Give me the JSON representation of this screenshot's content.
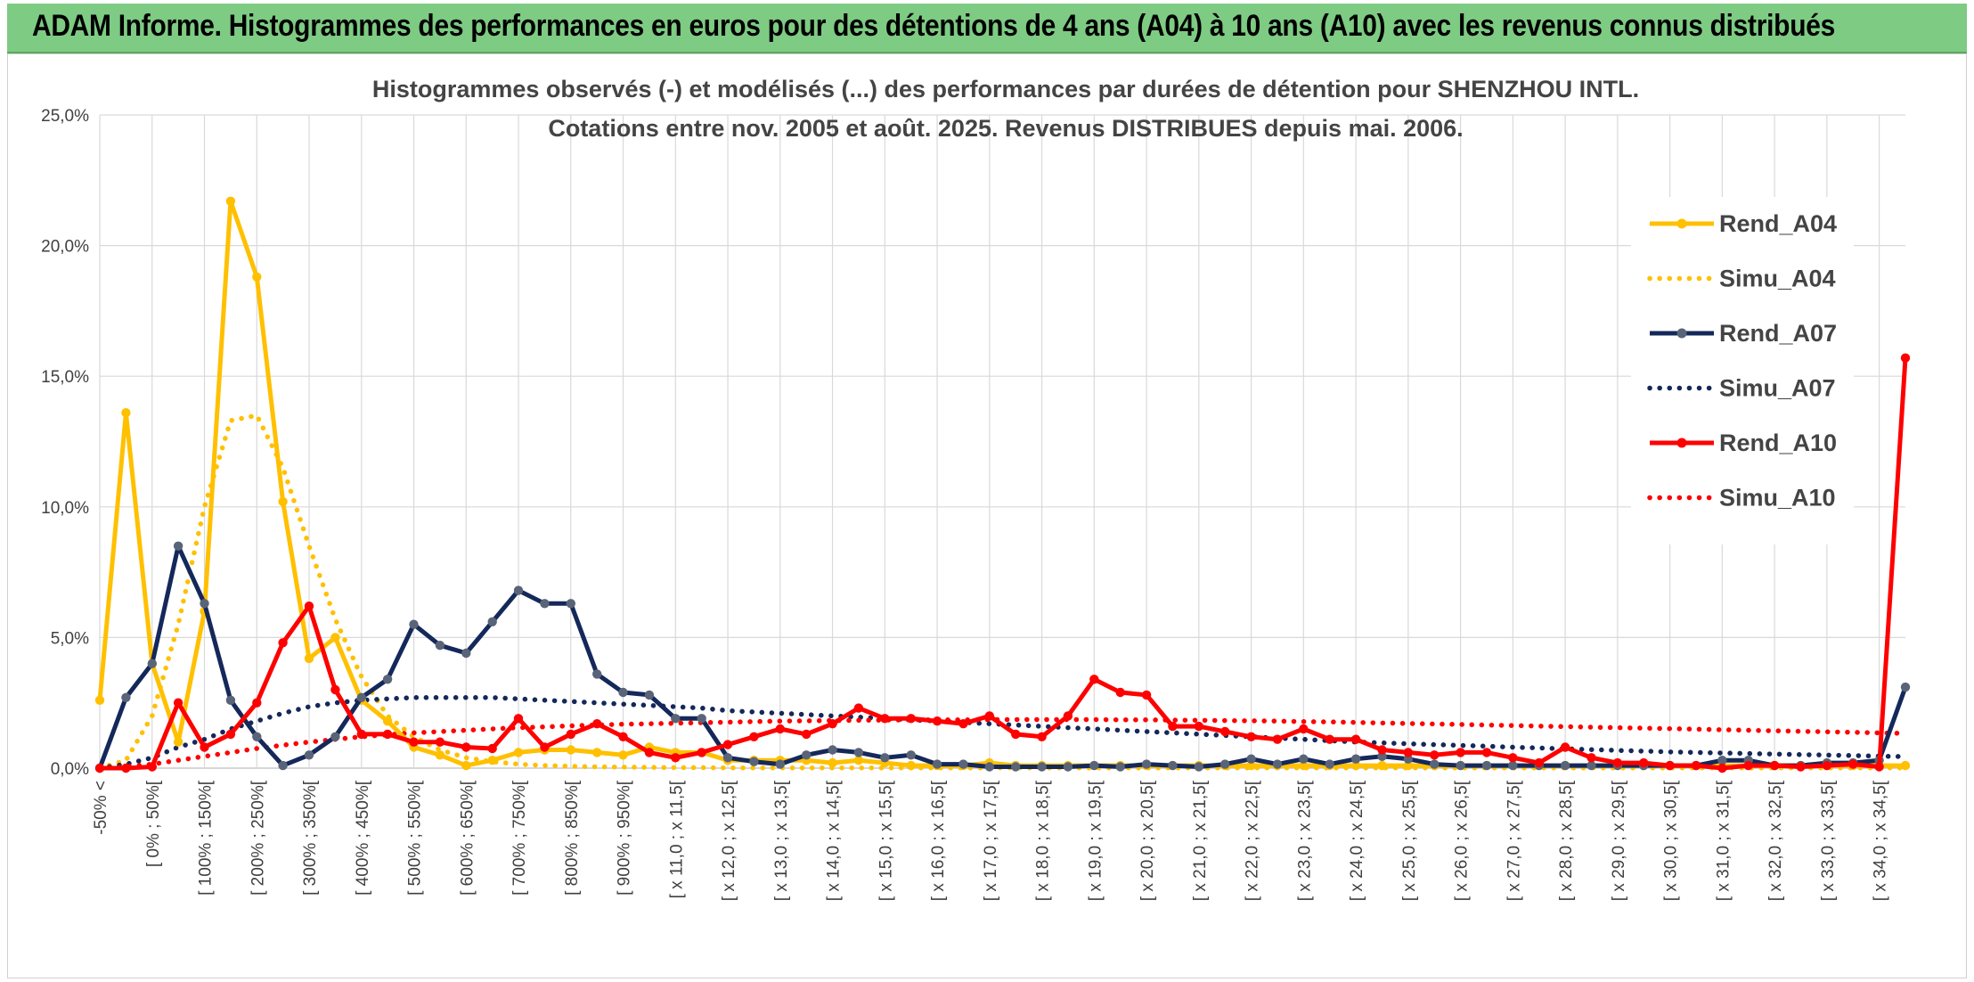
{
  "header": {
    "title": "ADAM Informe. Histogrammes des performances en euros pour des détentions de 4 ans (A04) à 10 ans (A10) avec les revenus connus distribués"
  },
  "chart_data": {
    "type": "line",
    "title": "Histogrammes observés (-) et modélisés (...) des performances par durées de détention pour SHENZHOU INTL.",
    "subtitle": "Cotations entre nov. 2005 et août. 2025. Revenus DISTRIBUES depuis mai. 2006.",
    "ylim": [
      0,
      25
    ],
    "y_ticks": [
      "0,0%",
      "5,0%",
      "10,0%",
      "15,0%",
      "20,0%",
      "25,0%"
    ],
    "grid": true,
    "legend_position": "right",
    "x_tick_labels": [
      "-50% <",
      "[ 0% ; 50%[",
      "[ 100% ; 150%[",
      "[ 200% ; 250%[",
      "[ 300% ; 350%[",
      "[ 400% ; 450%[",
      "[ 500% ; 550%[",
      "[ 600% ; 650%[",
      "[ 700% ; 750%[",
      "[ 800% ; 850%[",
      "[ 900% ; 950%[",
      "[ x 11,0 ; x 11,5[",
      "[ x 12,0 ; x 12,5[",
      "[ x 13,0 ; x 13,5[",
      "[ x 14,0 ; x 14,5[",
      "[ x 15,0 ; x 15,5[",
      "[ x 16,0 ; x 16,5[",
      "[ x 17,0 ; x 17,5[",
      "[ x 18,0 ; x 18,5[",
      "[ x 19,0 ; x 19,5[",
      "[ x 20,0 ; x 20,5[",
      "[ x 21,0 ; x 21,5[",
      "[ x 22,0 ; x 22,5[",
      "[ x 23,0 ; x 23,5[",
      "[ x 24,0 ; x 24,5[",
      "[ x 25,0 ; x 25,5[",
      "[ x 26,0 ; x 26,5[",
      "[ x 27,0 ; x 27,5[",
      "[ x 28,0 ; x 28,5[",
      "[ x 29,0 ; x 29,5[",
      "[ x 30,0 ; x 30,5[",
      "[ x 31,0 ; x 31,5[",
      "[ x 32,0 ; x 32,5[",
      "[ x 33,0 ; x 33,5[",
      "[ x 34,0 ; x 34,5["
    ],
    "n_points": 70,
    "series": [
      {
        "name": "Rend_A04",
        "style": "solid",
        "color": "#ffc000",
        "markers": true,
        "values": [
          2.6,
          13.6,
          4.0,
          1.0,
          6.0,
          21.7,
          18.8,
          10.2,
          4.2,
          5.0,
          2.6,
          1.8,
          0.8,
          0.5,
          0.1,
          0.3,
          0.6,
          0.7,
          0.7,
          0.6,
          0.5,
          0.8,
          0.6,
          0.6,
          0.3,
          0.3,
          0.3,
          0.3,
          0.2,
          0.3,
          0.2,
          0.1,
          0.1,
          0.1,
          0.2,
          0.1,
          0.1,
          0.1,
          0.1,
          0.1,
          0.1,
          0.1,
          0.1,
          0.1,
          0.1,
          0.1,
          0.1,
          0.1,
          0.1,
          0.1,
          0.1,
          0.1,
          0.1,
          0.1,
          0.1,
          0.1,
          0.1,
          0.1,
          0.1,
          0.1,
          0.1,
          0.1,
          0.1,
          0.1,
          0.1,
          0.1,
          0.1,
          0.1,
          0.1,
          0.1
        ]
      },
      {
        "name": "Simu_A04",
        "style": "dotted",
        "color": "#ffc000",
        "markers": false,
        "values": [
          0.0,
          0.3,
          2.0,
          5.5,
          10.0,
          13.3,
          13.5,
          11.5,
          8.5,
          5.7,
          3.5,
          2.0,
          1.2,
          0.7,
          0.4,
          0.25,
          0.15,
          0.1,
          0.07,
          0.05,
          0.04,
          0.03,
          0.02,
          0.02,
          0.01,
          0.01,
          0.01,
          0.01,
          0.01,
          0.01,
          0.01,
          0.01,
          0.01,
          0.01,
          0.01,
          0.01,
          0.01,
          0.01,
          0.01,
          0.01,
          0.01,
          0.01,
          0.01,
          0.01,
          0.01,
          0.01,
          0.01,
          0.01,
          0.01,
          0.01,
          0.01,
          0.01,
          0.01,
          0.01,
          0.01,
          0.01,
          0.01,
          0.01,
          0.01,
          0.01,
          0.01,
          0.01,
          0.01,
          0.01,
          0.01,
          0.01,
          0.01,
          0.01,
          0.01,
          0.01
        ]
      },
      {
        "name": "Rend_A07",
        "style": "solid",
        "color": "#14285a",
        "markers": true,
        "values": [
          0.0,
          2.7,
          4.0,
          8.5,
          6.3,
          2.6,
          1.2,
          0.1,
          0.5,
          1.2,
          2.7,
          3.4,
          5.5,
          4.7,
          4.4,
          5.6,
          6.8,
          6.3,
          6.3,
          3.6,
          2.9,
          2.8,
          1.9,
          1.9,
          0.4,
          0.25,
          0.15,
          0.5,
          0.7,
          0.6,
          0.4,
          0.5,
          0.15,
          0.15,
          0.05,
          0.05,
          0.05,
          0.05,
          0.1,
          0.05,
          0.15,
          0.1,
          0.05,
          0.15,
          0.35,
          0.15,
          0.35,
          0.15,
          0.35,
          0.45,
          0.35,
          0.15,
          0.1,
          0.1,
          0.1,
          0.1,
          0.1,
          0.1,
          0.1,
          0.1,
          0.1,
          0.1,
          0.3,
          0.3,
          0.1,
          0.1,
          0.2,
          0.2,
          0.3,
          3.1
        ]
      },
      {
        "name": "Simu_A07",
        "style": "dotted",
        "color": "#14285a",
        "markers": false,
        "values": [
          0.0,
          0.15,
          0.4,
          0.8,
          1.1,
          1.5,
          1.8,
          2.1,
          2.35,
          2.5,
          2.6,
          2.65,
          2.7,
          2.7,
          2.7,
          2.7,
          2.65,
          2.6,
          2.55,
          2.5,
          2.45,
          2.4,
          2.35,
          2.3,
          2.2,
          2.15,
          2.1,
          2.05,
          2.0,
          1.95,
          1.9,
          1.85,
          1.8,
          1.75,
          1.7,
          1.65,
          1.6,
          1.55,
          1.5,
          1.45,
          1.4,
          1.35,
          1.3,
          1.25,
          1.2,
          1.15,
          1.1,
          1.05,
          1.0,
          0.97,
          0.93,
          0.9,
          0.87,
          0.84,
          0.8,
          0.77,
          0.74,
          0.71,
          0.68,
          0.65,
          0.62,
          0.6,
          0.58,
          0.56,
          0.54,
          0.52,
          0.5,
          0.48,
          0.46,
          0.44
        ]
      },
      {
        "name": "Rend_A10",
        "style": "solid",
        "color": "#ff0000",
        "markers": true,
        "values": [
          0.0,
          0.0,
          0.05,
          2.5,
          0.8,
          1.3,
          2.5,
          4.8,
          6.2,
          3.0,
          1.3,
          1.3,
          1.0,
          1.0,
          0.8,
          0.75,
          1.9,
          0.8,
          1.3,
          1.7,
          1.2,
          0.6,
          0.4,
          0.6,
          0.9,
          1.2,
          1.5,
          1.3,
          1.7,
          2.3,
          1.9,
          1.9,
          1.8,
          1.7,
          2.0,
          1.3,
          1.2,
          2.0,
          3.4,
          2.9,
          2.8,
          1.6,
          1.6,
          1.4,
          1.2,
          1.1,
          1.5,
          1.1,
          1.1,
          0.7,
          0.6,
          0.5,
          0.6,
          0.6,
          0.4,
          0.2,
          0.8,
          0.4,
          0.2,
          0.2,
          0.1,
          0.1,
          0.0,
          0.1,
          0.1,
          0.05,
          0.1,
          0.15,
          0.05,
          15.7
        ]
      },
      {
        "name": "Simu_A10",
        "style": "dotted",
        "color": "#ff0000",
        "markers": false,
        "values": [
          0.0,
          0.05,
          0.15,
          0.3,
          0.45,
          0.6,
          0.75,
          0.88,
          1.0,
          1.1,
          1.2,
          1.28,
          1.35,
          1.4,
          1.45,
          1.5,
          1.55,
          1.58,
          1.62,
          1.65,
          1.68,
          1.7,
          1.72,
          1.74,
          1.76,
          1.78,
          1.8,
          1.81,
          1.82,
          1.83,
          1.84,
          1.85,
          1.85,
          1.85,
          1.86,
          1.86,
          1.86,
          1.86,
          1.86,
          1.85,
          1.85,
          1.84,
          1.83,
          1.82,
          1.81,
          1.8,
          1.78,
          1.77,
          1.75,
          1.73,
          1.71,
          1.69,
          1.67,
          1.65,
          1.63,
          1.61,
          1.59,
          1.57,
          1.55,
          1.53,
          1.51,
          1.49,
          1.47,
          1.45,
          1.43,
          1.41,
          1.39,
          1.37,
          1.35,
          1.33
        ]
      }
    ]
  }
}
